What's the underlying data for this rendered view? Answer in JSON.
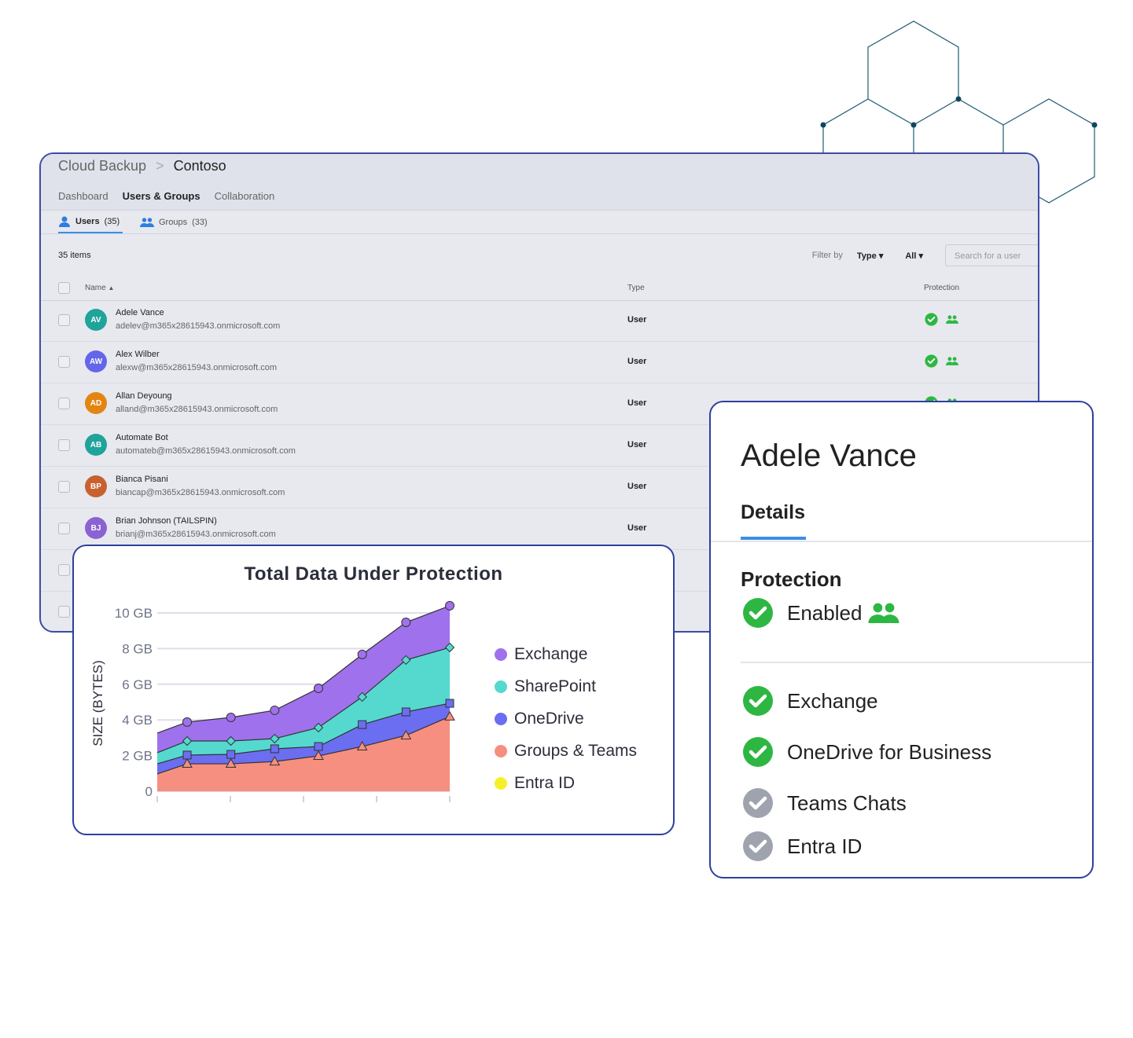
{
  "app": {
    "breadcrumb": [
      "Cloud Backup",
      "Contoso"
    ],
    "nav": [
      "Dashboard",
      "Users & Groups",
      "Collaboration"
    ],
    "nav_active": 1
  },
  "subtabs": [
    {
      "label": "Users",
      "count": "(35)",
      "icon": "user-icon"
    },
    {
      "label": "Groups",
      "count": "(33)",
      "icon": "group-icon"
    }
  ],
  "list": {
    "count_label": "35 items",
    "filter_label": "Filter by",
    "filter_type": "Type",
    "filter_value": "All",
    "search_placeholder": "Search for a user",
    "columns": {
      "name": "Name",
      "type": "Type",
      "protection": "Protection"
    },
    "rows": [
      {
        "initials": "AV",
        "name": "Adele Vance",
        "email": "adelev@m365x28615943.onmicrosoft.com",
        "type": "User",
        "color": "#1fa39a",
        "protected": true
      },
      {
        "initials": "AW",
        "name": "Alex Wilber",
        "email": "alexw@m365x28615943.onmicrosoft.com",
        "type": "User",
        "color": "#6366e8",
        "protected": true
      },
      {
        "initials": "AD",
        "name": "Allan Deyoung",
        "email": "alland@m365x28615943.onmicrosoft.com",
        "type": "User",
        "color": "#e38512",
        "protected": true
      },
      {
        "initials": "AB",
        "name": "Automate Bot",
        "email": "automateb@m365x28615943.onmicrosoft.com",
        "type": "User",
        "color": "#1fa39a",
        "protected": false
      },
      {
        "initials": "BP",
        "name": "Bianca Pisani",
        "email": "biancap@m365x28615943.onmicrosoft.com",
        "type": "User",
        "color": "#c8612f",
        "protected": false
      },
      {
        "initials": "BJ",
        "name": "Brian Johnson (TAILSPIN)",
        "email": "brianj@m365x28615943.onmicrosoft.com",
        "type": "User",
        "color": "#8a63d2",
        "protected": false
      }
    ]
  },
  "detail": {
    "name": "Adele Vance",
    "tab": "Details",
    "protection_title": "Protection",
    "status": "Enabled",
    "services": [
      {
        "label": "Exchange",
        "enabled": true
      },
      {
        "label": "OneDrive for Business",
        "enabled": true
      },
      {
        "label": "Teams Chats",
        "enabled": false
      },
      {
        "label": "Entra ID",
        "enabled": false
      }
    ]
  },
  "colors": {
    "enabled": "#2db742",
    "disabled": "#9ea3ad",
    "accent": "#3b8ee8",
    "border": "#2f3f9f"
  },
  "chart_data": {
    "type": "area",
    "stacked": true,
    "title": "Total Data Under Protection",
    "ylabel": "SIZE (BYTES)",
    "xlabel": "",
    "yticks": [
      "0",
      "2 GB",
      "4 GB",
      "6 GB",
      "8 GB",
      "10 GB"
    ],
    "ylim": [
      0,
      10.5
    ],
    "grid": true,
    "legend": "right",
    "series": [
      {
        "name": "Groups & Teams",
        "color": "#f68f7f",
        "marker": "triangle",
        "values": [
          0.97,
          1.54,
          1.54,
          1.67,
          1.98,
          2.51,
          3.13,
          4.19
        ]
      },
      {
        "name": "OneDrive",
        "color": "#6b6ef0",
        "marker": "square",
        "values": [
          0.57,
          0.49,
          0.53,
          0.71,
          0.53,
          1.23,
          1.32,
          0.74
        ]
      },
      {
        "name": "SharePoint",
        "color": "#55d9cf",
        "marker": "diamond",
        "values": [
          0.62,
          0.79,
          0.75,
          0.57,
          1.06,
          1.55,
          2.91,
          3.13
        ]
      },
      {
        "name": "Exchange",
        "color": "#a071ec",
        "marker": "circle",
        "values": [
          1.1,
          1.06,
          1.32,
          1.59,
          2.2,
          2.38,
          2.11,
          2.34
        ]
      },
      {
        "name": "Entra ID",
        "color": "#f6f02a",
        "marker": "none",
        "values": [
          0,
          0,
          0,
          0,
          0,
          0,
          0,
          0
        ]
      }
    ],
    "legend_order": [
      "Exchange",
      "SharePoint",
      "OneDrive",
      "Groups & Teams",
      "Entra ID"
    ]
  }
}
